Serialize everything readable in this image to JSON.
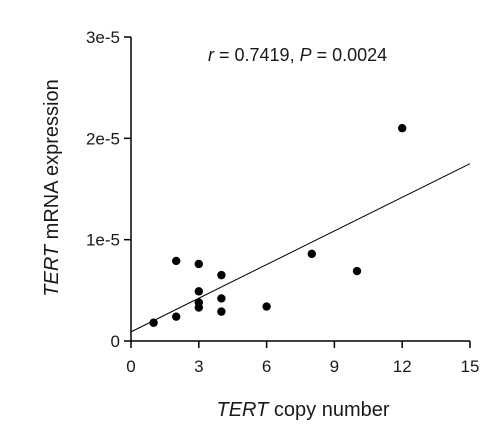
{
  "chart_data": {
    "type": "scatter",
    "xlabel_italic": "TERT",
    "xlabel_rest": " copy number",
    "ylabel_italic": "TERT",
    "ylabel_rest": " mRNA expression",
    "xlim": [
      0,
      15
    ],
    "ylim": [
      0,
      3e-05
    ],
    "x_ticks": [
      0,
      3,
      6,
      9,
      12,
      15
    ],
    "x_tick_labels": [
      "0",
      "3",
      "6",
      "9",
      "12",
      "15"
    ],
    "y_ticks": [
      0,
      1e-05,
      2e-05,
      3e-05
    ],
    "y_tick_labels": [
      "0",
      "1e-5",
      "2e-5",
      "3e-5"
    ],
    "grid": false,
    "annotation": {
      "r_symbol": "r",
      "r_text": " = 0.7419, ",
      "p_symbol": "P",
      "p_text": " = 0.0024"
    },
    "points": [
      {
        "x": 1,
        "y": 1.8e-06
      },
      {
        "x": 2,
        "y": 7.9e-06
      },
      {
        "x": 2,
        "y": 2.4e-06
      },
      {
        "x": 3,
        "y": 7.6e-06
      },
      {
        "x": 3,
        "y": 4.9e-06
      },
      {
        "x": 3,
        "y": 3.8e-06
      },
      {
        "x": 3,
        "y": 3.3e-06
      },
      {
        "x": 4,
        "y": 6.5e-06
      },
      {
        "x": 4,
        "y": 4.2e-06
      },
      {
        "x": 4,
        "y": 2.9e-06
      },
      {
        "x": 6,
        "y": 3.4e-06
      },
      {
        "x": 8,
        "y": 8.6e-06
      },
      {
        "x": 10,
        "y": 6.9e-06
      },
      {
        "x": 12,
        "y": 2.1e-05
      }
    ],
    "regression_line": {
      "x": [
        0,
        15
      ],
      "y": [
        9e-07,
        1.75e-05
      ]
    },
    "colors": {
      "points": "#000000",
      "line": "#000000",
      "axes": "#000000"
    }
  }
}
